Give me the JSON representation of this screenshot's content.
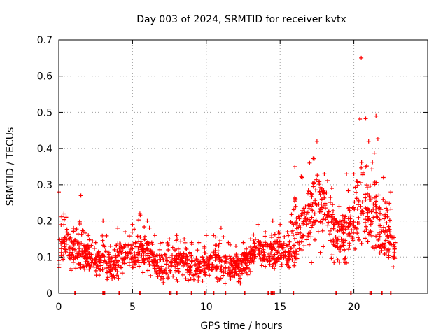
{
  "chart_data": {
    "type": "scatter",
    "title": "Day 003 of 2024, SRMTID for receiver kvtx",
    "xlabel": "GPS time / hours",
    "ylabel": "SRMTID / TECUs",
    "xlim": [
      0,
      25
    ],
    "ylim": [
      0,
      0.7
    ],
    "x_ticks": [
      0,
      5,
      10,
      15,
      20
    ],
    "x_tick_labels": [
      "0",
      "5",
      "10",
      "15",
      "20"
    ],
    "y_ticks": [
      0,
      0.1,
      0.2,
      0.3,
      0.4,
      0.5,
      0.6,
      0.7
    ],
    "y_tick_labels": [
      "0",
      "0.1",
      "0.2",
      "0.3",
      "0.4",
      "0.5",
      "0.6",
      "0.7"
    ],
    "grid": true,
    "marker": "plus",
    "series_color": "#ff0000",
    "series": [
      {
        "name": "SRMTID",
        "envelope_hours": [
          0,
          0.5,
          1,
          1.5,
          2,
          2.5,
          3,
          3.5,
          4,
          4.5,
          5,
          5.5,
          6,
          6.5,
          7,
          7.5,
          8,
          8.5,
          9,
          9.5,
          10,
          10.5,
          11,
          11.5,
          12,
          12.5,
          13,
          13.5,
          14,
          14.5,
          15,
          15.5,
          16,
          16.5,
          17,
          17.5,
          18,
          18.5,
          19,
          19.5,
          20,
          20.5,
          21,
          21.5,
          22,
          22.5,
          22.8
        ],
        "typical_values": [
          0.09,
          0.15,
          0.12,
          0.11,
          0.1,
          0.08,
          0.1,
          0.07,
          0.09,
          0.11,
          0.1,
          0.12,
          0.11,
          0.09,
          0.08,
          0.08,
          0.08,
          0.09,
          0.08,
          0.07,
          0.08,
          0.09,
          0.08,
          0.07,
          0.07,
          0.08,
          0.1,
          0.13,
          0.11,
          0.11,
          0.12,
          0.11,
          0.14,
          0.18,
          0.2,
          0.26,
          0.23,
          0.18,
          0.15,
          0.18,
          0.2,
          0.25,
          0.22,
          0.2,
          0.16,
          0.13,
          0.1
        ],
        "max_values": [
          0.28,
          0.21,
          0.18,
          0.27,
          0.16,
          0.14,
          0.2,
          0.13,
          0.18,
          0.17,
          0.19,
          0.22,
          0.2,
          0.16,
          0.14,
          0.15,
          0.16,
          0.15,
          0.14,
          0.14,
          0.16,
          0.16,
          0.18,
          0.14,
          0.13,
          0.14,
          0.15,
          0.19,
          0.17,
          0.2,
          0.19,
          0.17,
          0.35,
          0.32,
          0.36,
          0.42,
          0.33,
          0.29,
          0.24,
          0.33,
          0.33,
          0.65,
          0.42,
          0.49,
          0.32,
          0.28,
          0.14
        ],
        "min_values": [
          0.05,
          0.07,
          0.06,
          0.07,
          0.06,
          0.05,
          0.03,
          0.02,
          0.04,
          0.05,
          0.05,
          0.06,
          0.05,
          0.04,
          0.03,
          0.02,
          0.03,
          0.04,
          0.03,
          0.03,
          0.03,
          0.03,
          0.03,
          0.02,
          0.02,
          0.03,
          0.06,
          0.07,
          0.06,
          0.06,
          0.07,
          0.06,
          0.07,
          0.08,
          0.08,
          0.09,
          0.1,
          0.09,
          0.07,
          0.08,
          0.1,
          0.12,
          0.1,
          0.09,
          0.08,
          0.07,
          0.06
        ]
      }
    ],
    "data_gaps_at_zero_hours": [
      1.1,
      3.0,
      3.1,
      4.1,
      5.5,
      7.5,
      7.6,
      8.0,
      9.0,
      9.9,
      10.5,
      11.3,
      12.6,
      14.2,
      14.4,
      14.5,
      14.6,
      15.9,
      18.8,
      19.8,
      21.1,
      21.2,
      21.9,
      22.5
    ]
  }
}
